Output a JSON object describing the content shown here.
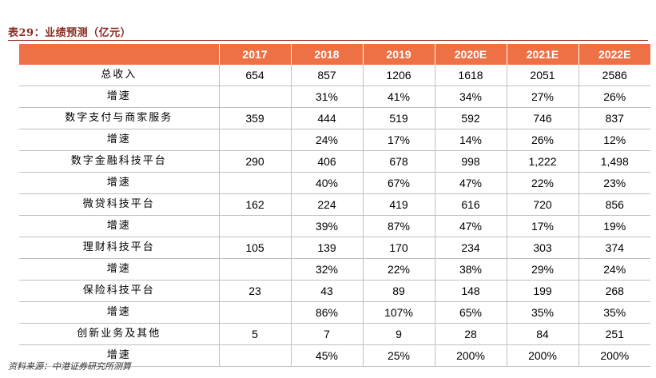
{
  "title": "表29：业绩预测（亿元）",
  "header": {
    "blank": "",
    "years": [
      "2017",
      "2018",
      "2019",
      "2020E",
      "2021E",
      "2022E"
    ]
  },
  "rows": [
    {
      "label": "总收入",
      "values": [
        "654",
        "857",
        "1206",
        "1618",
        "2051",
        "2586"
      ]
    },
    {
      "label": "增速",
      "values": [
        "",
        "31%",
        "41%",
        "34%",
        "27%",
        "26%"
      ]
    },
    {
      "label": "数字支付与商家服务",
      "values": [
        "359",
        "444",
        "519",
        "592",
        "746",
        "837"
      ]
    },
    {
      "label": "增速",
      "values": [
        "",
        "24%",
        "17%",
        "14%",
        "26%",
        "12%"
      ]
    },
    {
      "label": "数字金融科技平台",
      "values": [
        "290",
        "406",
        "678",
        "998",
        "1,222",
        "1,498"
      ]
    },
    {
      "label": "增速",
      "values": [
        "",
        "40%",
        "67%",
        "47%",
        "22%",
        "23%"
      ]
    },
    {
      "label": "微贷科技平台",
      "values": [
        "162",
        "224",
        "419",
        "616",
        "720",
        "856"
      ]
    },
    {
      "label": "增速",
      "values": [
        "",
        "39%",
        "87%",
        "47%",
        "17%",
        "19%"
      ]
    },
    {
      "label": "理财科技平台",
      "values": [
        "105",
        "139",
        "170",
        "234",
        "303",
        "374"
      ]
    },
    {
      "label": "增速",
      "values": [
        "",
        "32%",
        "22%",
        "38%",
        "29%",
        "24%"
      ]
    },
    {
      "label": "保险科技平台",
      "values": [
        "23",
        "43",
        "89",
        "148",
        "199",
        "268"
      ]
    },
    {
      "label": "增速",
      "values": [
        "",
        "86%",
        "107%",
        "65%",
        "35%",
        "35%"
      ]
    },
    {
      "label": "创新业务及其他",
      "values": [
        "5",
        "7",
        "9",
        "28",
        "84",
        "251"
      ]
    },
    {
      "label": "增速",
      "values": [
        "",
        "45%",
        "25%",
        "200%",
        "200%",
        "200%"
      ]
    }
  ],
  "source": "资料来源：中港证券研究所测算",
  "colors": {
    "header_bg": "#ee7045",
    "title": "#8b2a1e",
    "grid": "#bfbfbf"
  }
}
